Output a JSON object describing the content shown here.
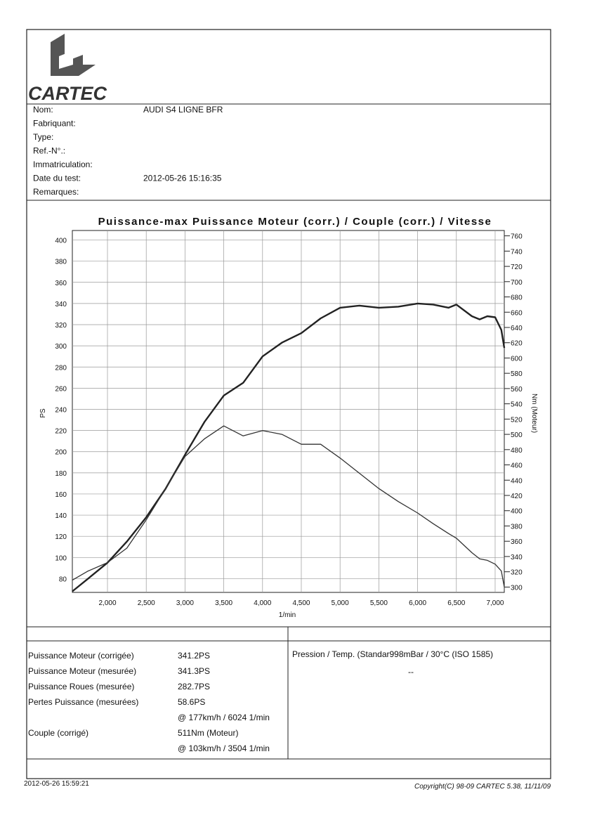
{
  "logo": "CARTEC",
  "fields": [
    {
      "label": "Nom:",
      "value": "AUDI S4 LIGNE BFR"
    },
    {
      "label": "Fabriquant:"
    },
    {
      "label": "Type:"
    },
    {
      "label": "Ref.-N°.:"
    },
    {
      "label": "Immatriculation:"
    },
    {
      "label": "Date du test:",
      "value": "2012-05-26 15:16:35"
    },
    {
      "label": "Remarques:"
    }
  ],
  "chart_data": {
    "type": "line",
    "title": "Puissance-max Puissance Moteur (corr.) / Couple (corr.) / Vitesse",
    "x_label": "1/min",
    "y_label": "PS",
    "y2_label": "Nm (Moteur)",
    "xlim": [
      1547,
      7118
    ],
    "ylim": [
      67,
      409
    ],
    "y2lim": [
      293,
      767
    ],
    "grid": true,
    "xticks": [
      {
        "value": 2000,
        "label": "2,000"
      },
      {
        "value": 2500,
        "label": "2,500"
      },
      {
        "value": 3000,
        "label": "3,000"
      },
      {
        "value": 3500,
        "label": "3,500"
      },
      {
        "value": 4000,
        "label": "4,000"
      },
      {
        "value": 4500,
        "label": "4,500"
      },
      {
        "value": 5000,
        "label": "5,000"
      },
      {
        "value": 5500,
        "label": "5,500"
      },
      {
        "value": 6000,
        "label": "6,000"
      },
      {
        "value": 6500,
        "label": "6,500"
      },
      {
        "value": 7000,
        "label": "7,000"
      }
    ],
    "yticks": [
      80,
      100,
      120,
      140,
      160,
      180,
      200,
      220,
      240,
      260,
      280,
      300,
      320,
      340,
      360,
      380,
      400
    ],
    "y2ticks": [
      300,
      320,
      340,
      360,
      380,
      400,
      420,
      440,
      460,
      480,
      500,
      520,
      540,
      560,
      580,
      600,
      620,
      640,
      660,
      680,
      700,
      720,
      740,
      760
    ],
    "x": [
      1547,
      1750,
      2000,
      2250,
      2500,
      2750,
      3000,
      3250,
      3500,
      3750,
      4000,
      4250,
      4500,
      4750,
      5000,
      5250,
      5500,
      5750,
      6000,
      6200,
      6400,
      6500,
      6700,
      6800,
      6900,
      7000,
      7080,
      7118
    ],
    "series": [
      {
        "color": "#222222",
        "values": [
          68,
          80,
          95,
          115,
          138,
          165,
          197,
          228,
          253,
          265,
          290,
          303,
          312,
          326,
          336,
          338,
          336,
          337,
          340,
          339,
          336,
          339,
          328,
          325,
          328,
          327,
          315,
          298
        ]
      },
      {
        "color": "#333333",
        "axis": "y2",
        "values": [
          309,
          321,
          332,
          351,
          388,
          429,
          471,
          494,
          511,
          498,
          505,
          500,
          487,
          487,
          469,
          449,
          429,
          412,
          397,
          383,
          370,
          364,
          345,
          337,
          335,
          330,
          321,
          300
        ]
      }
    ]
  },
  "results": [
    {
      "label": "Puissance Moteur (corrigée)",
      "value": "341.2PS"
    },
    {
      "label": "Puissance Moteur (mesurée)",
      "value": "341.3PS"
    },
    {
      "label": "Puissance Roues (mesurée)",
      "value": "282.7PS"
    },
    {
      "label": "Pertes Puissance (mesurées)",
      "value": "58.6PS"
    },
    {
      "value": "@ 177km/h / 6024 1/min"
    },
    {
      "label": "Couple (corrigé)",
      "value": "511Nm (Moteur)"
    },
    {
      "value": "@ 103km/h / 3504 1/min"
    }
  ],
  "pressure": "Pression / Temp. (Standar998mBar / 30°C   (ISO 1585)",
  "pressure_value": "--",
  "footer_date": "2012-05-26 15:59:21",
  "copyright": "Copyright(C) 98-09 CARTEC 5.38, 11/11/09"
}
